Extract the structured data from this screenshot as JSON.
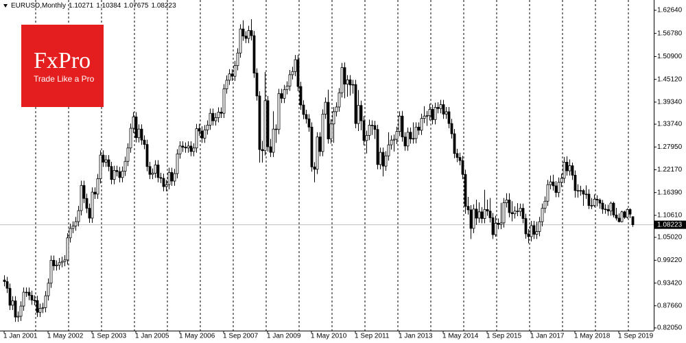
{
  "chart_data": {
    "type": "candlestick",
    "title": "EURUSD,Monthly",
    "categories": [
      "1 Jan 2001",
      null,
      null,
      null,
      null,
      null,
      null,
      null,
      null,
      null,
      null,
      null,
      null,
      null,
      null,
      null,
      "1 May 2002",
      null,
      null,
      null,
      null,
      null,
      null,
      null,
      null,
      null,
      null,
      null,
      null,
      null,
      null,
      null,
      "1 Sep 2003",
      null,
      null,
      null,
      null,
      null,
      null,
      null,
      null,
      null,
      null,
      null,
      null,
      null,
      null,
      null,
      "1 Jan 2005",
      null,
      null,
      null,
      null,
      null,
      null,
      null,
      null,
      null,
      null,
      null,
      null,
      null,
      null,
      null,
      "1 May 2006",
      null,
      null,
      null,
      null,
      null,
      null,
      null,
      null,
      null,
      null,
      null,
      null,
      null,
      null,
      null,
      "1 Sep 2007",
      null,
      null,
      null,
      null,
      null,
      null,
      null,
      null,
      null,
      null,
      null,
      null,
      null,
      null,
      null,
      "1 Jan 2009",
      null,
      null,
      null,
      null,
      null,
      null,
      null,
      null,
      null,
      null,
      null,
      null,
      null,
      null,
      null,
      "1 May 2010",
      null,
      null,
      null,
      null,
      null,
      null,
      null,
      null,
      null,
      null,
      null,
      null,
      null,
      null,
      null,
      "1 Sep 2011",
      null,
      null,
      null,
      null,
      null,
      null,
      null,
      null,
      null,
      null,
      null,
      null,
      null,
      null,
      null,
      "1 Jan 2013",
      null,
      null,
      null,
      null,
      null,
      null,
      null,
      null,
      null,
      null,
      null,
      null,
      null,
      null,
      null,
      "1 May 2014",
      null,
      null,
      null,
      null,
      null,
      null,
      null,
      null,
      null,
      null,
      null,
      null,
      null,
      null,
      null,
      "1 Sep 2015",
      null,
      null,
      null,
      null,
      null,
      null,
      null,
      null,
      null,
      null,
      null,
      null,
      null,
      null,
      null,
      "1 Jan 2017",
      null,
      null,
      null,
      null,
      null,
      null,
      null,
      null,
      null,
      null,
      null,
      null,
      null,
      null,
      null,
      "1 May 2018",
      null,
      null,
      null,
      null,
      null,
      null,
      null,
      null,
      null,
      null,
      null,
      null,
      null,
      null,
      null,
      "1 Sep 2019",
      null,
      null,
      null,
      null,
      null
    ],
    "open": [
      0.942,
      0.938,
      0.921,
      0.878,
      0.889,
      0.848,
      0.85,
      0.876,
      0.911,
      0.911,
      0.903,
      0.891,
      0.89,
      0.86,
      0.87,
      0.872,
      0.902,
      0.934,
      0.992,
      0.978,
      0.98,
      0.986,
      0.989,
      0.993,
      1.049,
      1.073,
      1.079,
      1.09,
      1.118,
      1.182,
      1.149,
      1.124,
      1.099,
      1.165,
      1.16,
      1.199,
      1.259,
      1.241,
      1.247,
      1.23,
      1.197,
      1.22,
      1.217,
      1.202,
      1.218,
      1.243,
      1.277,
      1.327,
      1.356,
      1.303,
      1.325,
      1.297,
      1.286,
      1.23,
      1.21,
      1.213,
      1.234,
      1.202,
      1.2,
      1.179,
      1.184,
      1.215,
      1.193,
      1.212,
      1.262,
      1.282,
      1.279,
      1.277,
      1.282,
      1.268,
      1.277,
      1.326,
      1.32,
      1.302,
      1.323,
      1.335,
      1.365,
      1.346,
      1.354,
      1.368,
      1.365,
      1.427,
      1.449,
      1.465,
      1.459,
      1.486,
      1.518,
      1.579,
      1.561,
      1.555,
      1.575,
      1.562,
      1.467,
      1.409,
      1.273,
      1.27,
      1.397,
      1.28,
      1.266,
      1.325,
      1.324,
      1.415,
      1.403,
      1.425,
      1.434,
      1.463,
      1.471,
      1.501,
      1.433,
      1.386,
      1.362,
      1.351,
      1.33,
      1.229,
      1.223,
      1.305,
      1.268,
      1.363,
      1.393,
      1.3,
      1.338,
      1.369,
      1.381,
      1.417,
      1.481,
      1.439,
      1.45,
      1.437,
      1.438,
      1.339,
      1.385,
      1.346,
      1.296,
      1.309,
      1.335,
      1.334,
      1.324,
      1.235,
      1.266,
      1.231,
      1.257,
      1.285,
      1.297,
      1.299,
      1.319,
      1.358,
      1.305,
      1.282,
      1.317,
      1.3,
      1.301,
      1.33,
      1.322,
      1.352,
      1.358,
      1.359,
      1.375,
      1.349,
      1.38,
      1.377,
      1.387,
      1.363,
      1.369,
      1.339,
      1.313,
      1.263,
      1.253,
      1.245,
      1.21,
      1.129,
      1.12,
      1.073,
      1.122,
      1.099,
      1.115,
      1.098,
      1.121,
      1.117,
      1.1,
      1.057,
      1.086,
      1.083,
      1.087,
      1.138,
      1.145,
      1.113,
      1.11,
      1.117,
      1.116,
      1.124,
      1.098,
      1.059,
      1.052,
      1.08,
      1.058,
      1.065,
      1.09,
      1.124,
      1.142,
      1.184,
      1.191,
      1.181,
      1.164,
      1.19,
      1.2,
      1.241,
      1.219,
      1.232,
      1.208,
      1.169,
      1.168,
      1.169,
      1.16,
      1.16,
      1.131,
      1.131,
      1.147,
      1.145,
      1.137,
      1.122,
      1.121,
      1.117,
      1.137,
      1.107,
      1.099,
      1.09,
      1.115,
      1.101,
      1.121,
      1.10271
    ],
    "high": [
      0.954,
      0.95,
      0.933,
      0.901,
      0.901,
      0.862,
      0.888,
      0.923,
      0.923,
      0.923,
      0.915,
      0.903,
      0.902,
      0.882,
      0.884,
      0.914,
      0.946,
      1.004,
      1.004,
      0.992,
      0.998,
      1.001,
      1.005,
      1.061,
      1.085,
      1.091,
      1.102,
      1.13,
      1.194,
      1.194,
      1.161,
      1.136,
      1.177,
      1.177,
      1.211,
      1.271,
      1.271,
      1.259,
      1.259,
      1.242,
      1.232,
      1.232,
      1.229,
      1.23,
      1.255,
      1.289,
      1.339,
      1.368,
      1.368,
      1.337,
      1.337,
      1.309,
      1.298,
      1.242,
      1.225,
      1.246,
      1.246,
      1.214,
      1.212,
      1.196,
      1.227,
      1.227,
      1.224,
      1.274,
      1.294,
      1.294,
      1.291,
      1.294,
      1.294,
      1.289,
      1.338,
      1.338,
      1.332,
      1.335,
      1.347,
      1.377,
      1.377,
      1.366,
      1.38,
      1.38,
      1.439,
      1.461,
      1.477,
      1.477,
      1.498,
      1.53,
      1.591,
      1.601,
      1.573,
      1.587,
      1.604,
      1.574,
      1.479,
      1.421,
      1.295,
      1.47,
      1.409,
      1.3,
      1.37,
      1.337,
      1.427,
      1.427,
      1.437,
      1.446,
      1.475,
      1.483,
      1.513,
      1.513,
      1.445,
      1.398,
      1.374,
      1.363,
      1.342,
      1.241,
      1.317,
      1.317,
      1.375,
      1.405,
      1.425,
      1.35,
      1.381,
      1.393,
      1.429,
      1.493,
      1.494,
      1.462,
      1.462,
      1.45,
      1.45,
      1.424,
      1.397,
      1.358,
      1.321,
      1.349,
      1.347,
      1.346,
      1.336,
      1.278,
      1.278,
      1.269,
      1.317,
      1.309,
      1.311,
      1.331,
      1.37,
      1.371,
      1.317,
      1.329,
      1.329,
      1.342,
      1.342,
      1.342,
      1.364,
      1.383,
      1.371,
      1.389,
      1.387,
      1.392,
      1.393,
      1.399,
      1.399,
      1.381,
      1.381,
      1.351,
      1.325,
      1.275,
      1.265,
      1.257,
      1.222,
      1.153,
      1.132,
      1.134,
      1.146,
      1.139,
      1.127,
      1.171,
      1.146,
      1.15,
      1.112,
      1.105,
      1.098,
      1.138,
      1.15,
      1.162,
      1.162,
      1.142,
      1.129,
      1.137,
      1.136,
      1.136,
      1.11,
      1.071,
      1.092,
      1.092,
      1.09,
      1.102,
      1.136,
      1.154,
      1.196,
      1.207,
      1.209,
      1.193,
      1.202,
      1.212,
      1.254,
      1.256,
      1.248,
      1.24,
      1.22,
      1.185,
      1.181,
      1.173,
      1.182,
      1.172,
      1.15,
      1.159,
      1.157,
      1.149,
      1.145,
      1.134,
      1.133,
      1.141,
      1.141,
      1.125,
      1.111,
      1.118,
      1.118,
      1.124,
      1.124,
      1.10384
    ],
    "low": [
      0.926,
      0.909,
      0.866,
      0.866,
      0.836,
      0.836,
      0.838,
      0.864,
      0.899,
      0.891,
      0.879,
      0.878,
      0.848,
      0.848,
      0.858,
      0.86,
      0.89,
      0.922,
      0.966,
      0.966,
      0.968,
      0.974,
      0.977,
      0.981,
      1.037,
      1.061,
      1.067,
      1.078,
      1.106,
      1.137,
      1.112,
      1.087,
      1.087,
      1.148,
      1.148,
      1.187,
      1.229,
      1.229,
      1.218,
      1.185,
      1.185,
      1.205,
      1.19,
      1.19,
      1.206,
      1.231,
      1.265,
      1.315,
      1.291,
      1.291,
      1.285,
      1.274,
      1.218,
      1.198,
      1.198,
      1.201,
      1.19,
      1.188,
      1.167,
      1.167,
      1.172,
      1.181,
      1.181,
      1.2,
      1.25,
      1.267,
      1.265,
      1.265,
      1.256,
      1.256,
      1.265,
      1.308,
      1.29,
      1.29,
      1.311,
      1.323,
      1.334,
      1.334,
      1.342,
      1.353,
      1.353,
      1.415,
      1.437,
      1.447,
      1.447,
      1.474,
      1.506,
      1.549,
      1.543,
      1.543,
      1.55,
      1.455,
      1.397,
      1.24,
      1.24,
      1.258,
      1.268,
      1.254,
      1.254,
      1.29,
      1.312,
      1.391,
      1.391,
      1.413,
      1.422,
      1.451,
      1.459,
      1.421,
      1.374,
      1.35,
      1.339,
      1.318,
      1.217,
      1.19,
      1.211,
      1.256,
      1.256,
      1.351,
      1.288,
      1.288,
      1.29,
      1.357,
      1.369,
      1.405,
      1.403,
      1.407,
      1.41,
      1.415,
      1.327,
      1.32,
      1.322,
      1.284,
      1.263,
      1.297,
      1.31,
      1.3,
      1.223,
      1.223,
      1.205,
      1.219,
      1.245,
      1.273,
      1.268,
      1.287,
      1.307,
      1.293,
      1.27,
      1.27,
      1.288,
      1.288,
      1.289,
      1.31,
      1.31,
      1.34,
      1.333,
      1.347,
      1.337,
      1.337,
      1.365,
      1.365,
      1.351,
      1.351,
      1.327,
      1.301,
      1.251,
      1.241,
      1.233,
      1.198,
      1.11,
      1.108,
      1.046,
      1.061,
      1.082,
      1.087,
      1.086,
      1.086,
      1.105,
      1.088,
      1.046,
      1.052,
      1.071,
      1.071,
      1.075,
      1.126,
      1.101,
      1.091,
      1.098,
      1.104,
      1.104,
      1.086,
      1.047,
      1.035,
      1.04,
      1.046,
      1.046,
      1.053,
      1.078,
      1.112,
      1.13,
      1.172,
      1.169,
      1.152,
      1.152,
      1.178,
      1.188,
      1.207,
      1.207,
      1.196,
      1.151,
      1.151,
      1.156,
      1.13,
      1.148,
      1.122,
      1.122,
      1.127,
      1.129,
      1.123,
      1.11,
      1.11,
      1.105,
      1.105,
      1.101,
      1.093,
      1.088,
      1.088,
      1.097,
      1.098,
      1.099,
      1.07675
    ],
    "close": [
      0.938,
      0.921,
      0.878,
      0.889,
      0.848,
      0.85,
      0.876,
      0.911,
      0.911,
      0.903,
      0.891,
      0.89,
      0.86,
      0.87,
      0.872,
      0.902,
      0.934,
      0.992,
      0.978,
      0.98,
      0.986,
      0.989,
      0.993,
      1.049,
      1.073,
      1.079,
      1.09,
      1.118,
      1.182,
      1.149,
      1.124,
      1.099,
      1.165,
      1.16,
      1.199,
      1.259,
      1.241,
      1.247,
      1.23,
      1.197,
      1.22,
      1.217,
      1.202,
      1.218,
      1.243,
      1.277,
      1.327,
      1.356,
      1.303,
      1.325,
      1.297,
      1.286,
      1.23,
      1.21,
      1.213,
      1.234,
      1.202,
      1.2,
      1.179,
      1.184,
      1.215,
      1.193,
      1.212,
      1.262,
      1.282,
      1.279,
      1.277,
      1.282,
      1.268,
      1.277,
      1.326,
      1.32,
      1.302,
      1.323,
      1.335,
      1.365,
      1.346,
      1.354,
      1.368,
      1.365,
      1.427,
      1.449,
      1.465,
      1.459,
      1.486,
      1.518,
      1.579,
      1.561,
      1.555,
      1.575,
      1.562,
      1.467,
      1.409,
      1.273,
      1.27,
      1.397,
      1.28,
      1.266,
      1.325,
      1.324,
      1.415,
      1.403,
      1.425,
      1.434,
      1.463,
      1.471,
      1.501,
      1.433,
      1.386,
      1.362,
      1.351,
      1.33,
      1.229,
      1.223,
      1.305,
      1.268,
      1.363,
      1.393,
      1.3,
      1.338,
      1.369,
      1.381,
      1.417,
      1.481,
      1.439,
      1.45,
      1.437,
      1.438,
      1.339,
      1.385,
      1.346,
      1.296,
      1.309,
      1.335,
      1.334,
      1.324,
      1.235,
      1.266,
      1.231,
      1.257,
      1.285,
      1.297,
      1.299,
      1.319,
      1.358,
      1.305,
      1.282,
      1.317,
      1.3,
      1.301,
      1.33,
      1.322,
      1.352,
      1.358,
      1.359,
      1.375,
      1.349,
      1.38,
      1.377,
      1.387,
      1.363,
      1.369,
      1.339,
      1.313,
      1.263,
      1.253,
      1.245,
      1.21,
      1.129,
      1.12,
      1.073,
      1.122,
      1.099,
      1.115,
      1.098,
      1.121,
      1.117,
      1.1,
      1.057,
      1.086,
      1.083,
      1.087,
      1.138,
      1.145,
      1.113,
      1.11,
      1.117,
      1.116,
      1.124,
      1.098,
      1.059,
      1.052,
      1.08,
      1.058,
      1.065,
      1.09,
      1.124,
      1.142,
      1.184,
      1.191,
      1.181,
      1.164,
      1.19,
      1.2,
      1.241,
      1.219,
      1.232,
      1.208,
      1.169,
      1.168,
      1.169,
      1.16,
      1.16,
      1.131,
      1.131,
      1.147,
      1.145,
      1.137,
      1.122,
      1.121,
      1.117,
      1.137,
      1.107,
      1.099,
      1.09,
      1.115,
      1.101,
      1.121,
      1.109,
      1.08223
    ],
    "up_color": "#ffffff",
    "down_color": "#000000",
    "line_color": "#000000",
    "ylim": [
      0.8135,
      1.6525
    ],
    "yticks": [
      {
        "value": 1.6264,
        "label": "1.62640"
      },
      {
        "value": 1.5678,
        "label": "1.56780"
      },
      {
        "value": 1.509,
        "label": "1.50900"
      },
      {
        "value": 1.4512,
        "label": "1.45120"
      },
      {
        "value": 1.3934,
        "label": "1.39340"
      },
      {
        "value": 1.3374,
        "label": "1.33740"
      },
      {
        "value": 1.2795,
        "label": "1.27950"
      },
      {
        "value": 1.2217,
        "label": "1.22170"
      },
      {
        "value": 1.1639,
        "label": "1.16390"
      },
      {
        "value": 1.1061,
        "label": "1.10610"
      },
      {
        "value": 1.0502,
        "label": "1.05020"
      },
      {
        "value": 0.9922,
        "label": "0.99220"
      },
      {
        "value": 0.9342,
        "label": "0.93420"
      },
      {
        "value": 0.8766,
        "label": "0.87660"
      },
      {
        "value": 0.8205,
        "label": "0.82050"
      }
    ],
    "period_separators": true
  },
  "logo": {
    "brand": "FxPro",
    "tagline": "Trade Like a Pro"
  }
}
